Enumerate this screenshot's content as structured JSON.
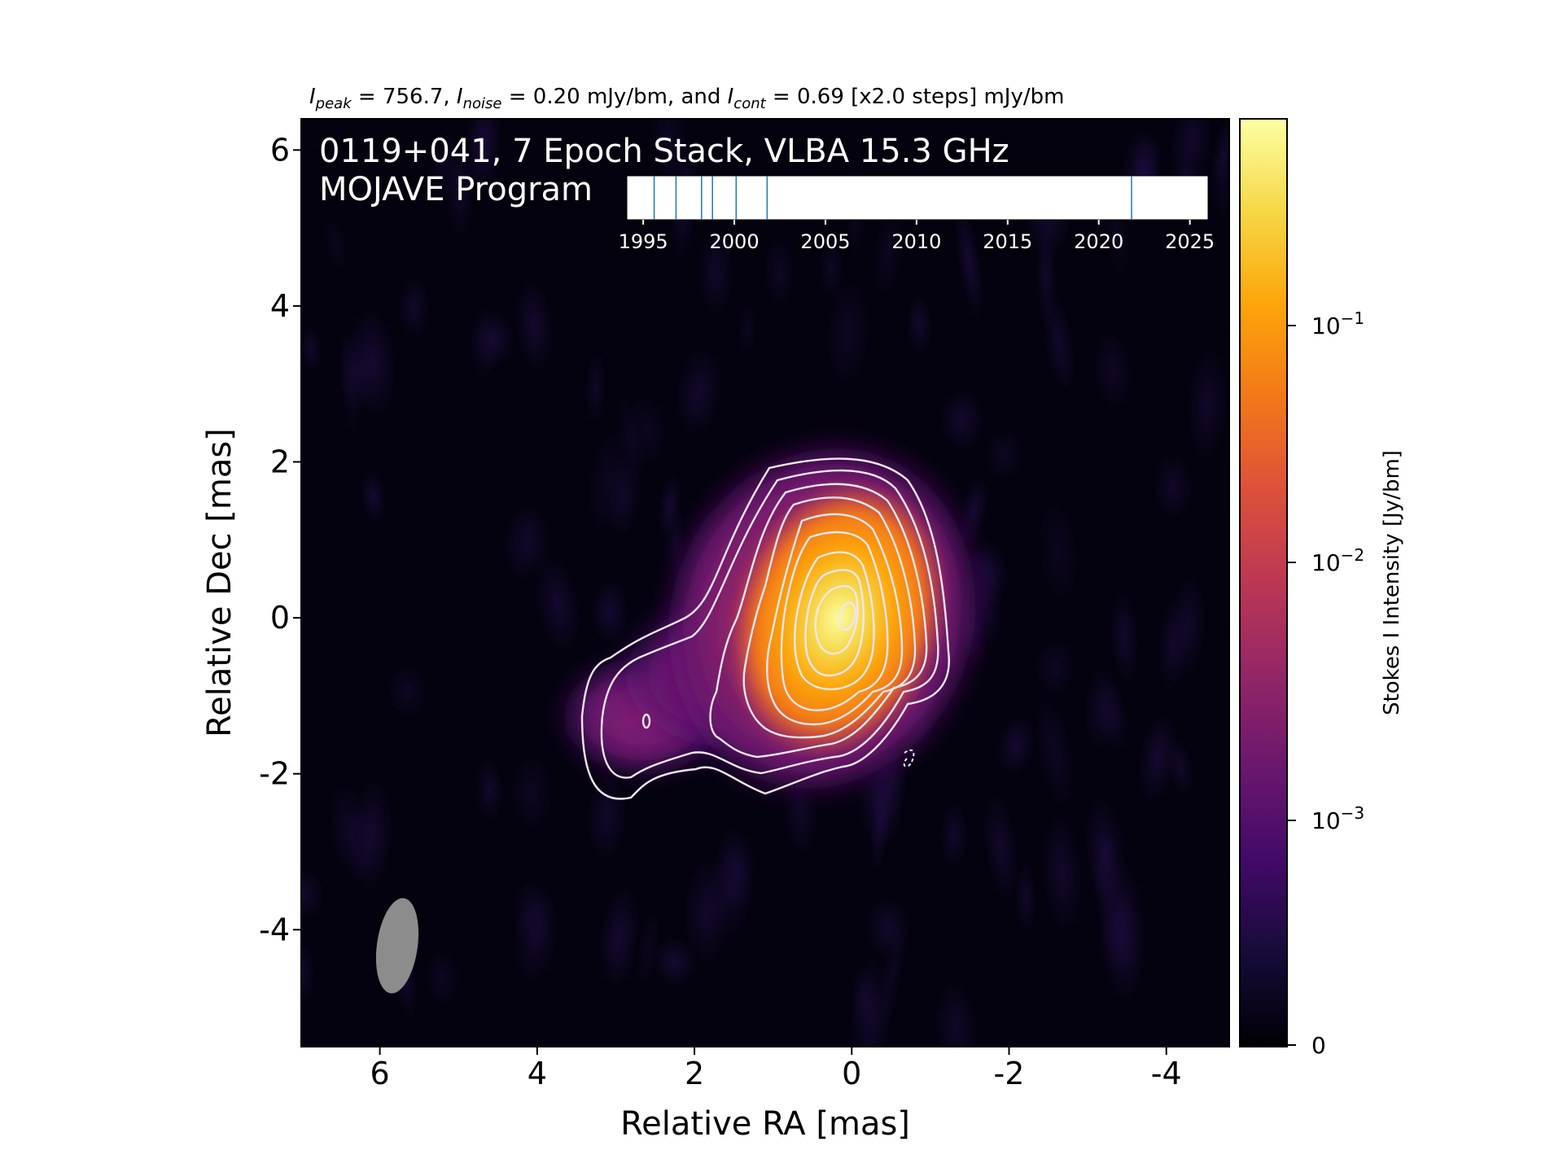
{
  "header": {
    "peak_label": "I",
    "peak_sub": "peak",
    "peak_value": " = 756.7, ",
    "noise_label": "I",
    "noise_sub": "noise",
    "noise_value": " = 0.20 mJy/bm, and ",
    "cont_label": "I",
    "cont_sub": "cont",
    "cont_value": " = 0.69 [x2.0 steps] mJy/bm"
  },
  "image_overlay": {
    "title_line1": "0119+041, 7 Epoch Stack, VLBA 15.3 GHz",
    "title_line2": "MOJAVE Program"
  },
  "colorbar": {
    "label": "Stokes I Intensity [Jy/bm]",
    "ticks": [
      {
        "base": "10",
        "exp": "−1",
        "value": 0.1
      },
      {
        "base": "10",
        "exp": "−2",
        "value": 0.01
      },
      {
        "base": "10",
        "exp": "−3",
        "value": 0.001
      },
      {
        "base": "0",
        "exp": "",
        "value": 0
      }
    ],
    "colormap": "inferno",
    "scale": "symlog"
  },
  "chart_data": [
    {
      "type": "heatmap",
      "title": "",
      "xlabel": "Relative RA [mas]",
      "ylabel": "Relative Dec [mas]",
      "xlim": [
        7,
        -4.8
      ],
      "ylim": [
        -5.5,
        6.4
      ],
      "x_ticks": [
        "6",
        "4",
        "2",
        "0",
        "-2",
        "-4"
      ],
      "x_tick_values": [
        6,
        4,
        2,
        0,
        -2,
        -4
      ],
      "y_ticks": [
        "6",
        "4",
        "2",
        "0",
        "-2",
        "-4"
      ],
      "y_tick_values": [
        6,
        4,
        2,
        0,
        -2,
        -4
      ],
      "peak_position": [
        0,
        0
      ],
      "secondary_feature_position": [
        2.6,
        -1.4
      ],
      "beam": {
        "x": 5.8,
        "y": -4.3,
        "major_mas": 1.23,
        "minor_mas": 0.53,
        "pa_deg": -5,
        "color": "#8c8c8c"
      },
      "contour_color": "#f2e6f2",
      "contour_count": 10
    },
    {
      "type": "scatter",
      "title": "",
      "x_ticks": [
        "1995",
        "2000",
        "2005",
        "2010",
        "2015",
        "2020",
        "2025"
      ],
      "x_tick_values": [
        1995,
        2000,
        2005,
        2010,
        2015,
        2020,
        2025
      ],
      "xlim": [
        1994.1,
        2026
      ],
      "epochs": [
        1995.6,
        1996.8,
        1998.2,
        1998.8,
        2000.1,
        2001.8,
        2021.8
      ],
      "line_color": "#1f77b4"
    }
  ]
}
